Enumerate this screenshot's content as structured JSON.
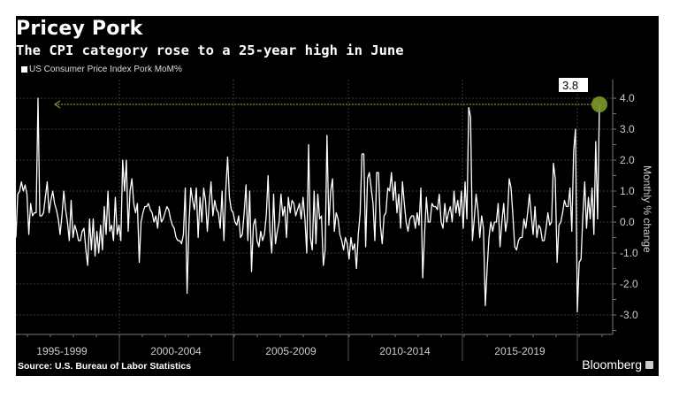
{
  "header": {
    "title": "Pricey Pork",
    "subtitle": "The CPI category rose to a 25-year high in June"
  },
  "footer": {
    "source": "Source: U.S. Bureau of Labor Statistics",
    "brand": "Bloomberg"
  },
  "colors": {
    "background": "#000000",
    "line": "#ffffff",
    "highlight": "#7a9a2a",
    "grid": "#444444"
  },
  "chart_data": {
    "type": "line",
    "title": "Pricey Pork",
    "subtitle": "The CPI category rose to a 25-year high in June",
    "ylabel": "Monthly % change",
    "ylim": [
      -3.6,
      4.5
    ],
    "yticks": [
      "4.0",
      "3.0",
      "2.0",
      "1.0",
      "0.0",
      "-1.0",
      "-2.0",
      "-3.0"
    ],
    "xtick_labels": [
      "1995-1999",
      "2000-2004",
      "2005-2009",
      "2010-2014",
      "2015-2019"
    ],
    "grid": true,
    "legend": {
      "position": "top-left",
      "entries": [
        "US Consumer Price Index Pork MoM%"
      ]
    },
    "annotation": {
      "label": "3.8",
      "value": 3.8,
      "note": "latest value highlighted with reference line"
    },
    "series": [
      {
        "name": "US Consumer Price Index Pork MoM%",
        "monthly_values_by_year": {
          "1995": [
            -0.5,
            0.9,
            1.0,
            1.3,
            1.0,
            1.2,
            0.9,
            -0.4,
            0.6,
            0.2,
            0.3,
            0.3
          ],
          "1996": [
            4.0,
            0.2,
            0.2,
            0.3,
            0.8,
            1.3,
            0.3,
            0.7,
            1.0,
            0.6,
            0.4,
            0.1
          ],
          "1997": [
            -0.4,
            0.2,
            1.0,
            0.4,
            0.0,
            -0.6,
            0.7,
            -0.5,
            -0.1,
            -0.3,
            -0.6,
            -0.6
          ],
          "1998": [
            -0.3,
            -0.2,
            -0.9,
            -1.4,
            0.1,
            -0.9,
            0.1,
            -1.1,
            -0.3,
            -1.0,
            -0.1,
            -0.9
          ],
          "1999": [
            0.5,
            -0.4,
            1.0,
            -0.3,
            -0.1,
            -0.6,
            0.8,
            -0.4,
            -0.1,
            -0.6,
            2.0,
            1.0
          ],
          "2000": [
            2.0,
            -0.3,
            1.0,
            1.4,
            0.6,
            0.3,
            0.6,
            -1.3,
            0.0,
            0.3,
            0.5,
            0.5
          ],
          "2001": [
            0.6,
            0.4,
            0.3,
            0.0,
            0.2,
            -0.2,
            0.5,
            0.0,
            0.1,
            0.3,
            0.5,
            0.4
          ],
          "2002": [
            0.1,
            -0.1,
            -0.2,
            -0.5,
            -0.6,
            -0.6,
            -0.7,
            -0.4,
            1.1,
            -2.3,
            -0.1,
            1.1
          ],
          "2003": [
            0.7,
            0.4,
            1.1,
            -0.5,
            0.8,
            0.0,
            1.1,
            0.7,
            -0.3,
            0.6,
            1.3,
            0.2
          ],
          "2004": [
            0.7,
            0.4,
            0.3,
            -0.2,
            1.0,
            -0.6,
            1.0,
            2.1,
            0.8,
            0.4,
            0.3,
            0.0
          ],
          "2005": [
            -0.1,
            0.2,
            -0.5,
            -0.4,
            0.3,
            1.2,
            -0.6,
            1.0,
            -1.6,
            -0.1,
            0.1,
            -0.6
          ],
          "2006": [
            -0.8,
            -0.3,
            -0.6,
            -0.4,
            0.2,
            1.5,
            -0.3,
            -1.0,
            0.9,
            -0.7,
            -0.3,
            0.0
          ],
          "2007": [
            0.9,
            0.2,
            0.5,
            -0.5,
            0.8,
            0.3,
            0.7,
            0.6,
            0.2,
            0.4,
            0.6,
            0.1
          ],
          "2008": [
            0.8,
            0.1,
            -1.0,
            2.5,
            -0.5,
            -0.9,
            1.0,
            -0.7,
            0.9,
            0.1,
            0.2,
            -1.4
          ],
          "2009": [
            -0.9,
            2.8,
            -0.1,
            1.0,
            1.4,
            -0.3,
            0.3,
            0.1,
            -0.4,
            -0.6,
            -0.9,
            -0.5
          ],
          "2010": [
            -0.7,
            -1.2,
            -0.5,
            -0.9,
            -0.7,
            -1.5,
            -0.4,
            0.3,
            2.2,
            2.2,
            -0.8,
            1.4
          ],
          "2011": [
            1.6,
            1.1,
            0.6,
            -0.6,
            1.6,
            1.6,
            -0.1,
            -0.7,
            0.2,
            0.3,
            1.1,
            1.0
          ],
          "2012": [
            1.6,
            0.7,
            1.3,
            0.3,
            0.9,
            -0.2,
            1.3,
            0.6,
            0.0,
            -0.3,
            0.1,
            0.2
          ],
          "2013": [
            0.2,
            -0.2,
            0.3,
            -0.1,
            1.1,
            -1.8,
            -0.4,
            0.8,
            0.0,
            0.0,
            0.6,
            0.5
          ],
          "2014": [
            0.5,
            0.4,
            0.9,
            0.0,
            -0.2,
            0.6,
            0.0,
            0.3,
            0.5,
            0.0,
            1.0,
            0.3
          ],
          "2015": [
            0.7,
            0.2,
            1.0,
            -0.2,
            1.3,
            0.1,
            3.7,
            3.4,
            -0.6,
            0.1,
            0.9,
            0.4
          ],
          "2016": [
            -0.5,
            0.2,
            -0.2,
            -2.7,
            -1.5,
            -0.5,
            0.0,
            -0.3,
            0.0,
            0.0,
            0.6,
            -0.8
          ],
          "2017": [
            0.0,
            0.6,
            -0.3,
            0.1,
            1.4,
            1.1,
            0.2,
            -0.8,
            -0.9,
            -0.6,
            -0.5,
            -0.5
          ],
          "2018": [
            0.1,
            -0.2,
            0.3,
            0.9,
            0.2,
            -0.4,
            0.5,
            -0.5,
            -0.1,
            -0.2,
            -0.6,
            -0.6
          ],
          "2019": [
            -0.2,
            0.3,
            -0.1,
            0.0,
            1.9,
            1.4,
            -1.3,
            -0.1,
            0.0,
            0.3,
            0.7,
            0.5
          ],
          "2020": [
            0.5,
            1.1,
            -0.3,
            2.3,
            3.0,
            -2.9,
            -1.3,
            -1.2,
            0.2,
            1.3,
            -0.2,
            0.8
          ],
          "2021": [
            0.1,
            1.1,
            -0.4,
            2.6,
            0.1,
            3.8
          ]
        }
      }
    ]
  }
}
